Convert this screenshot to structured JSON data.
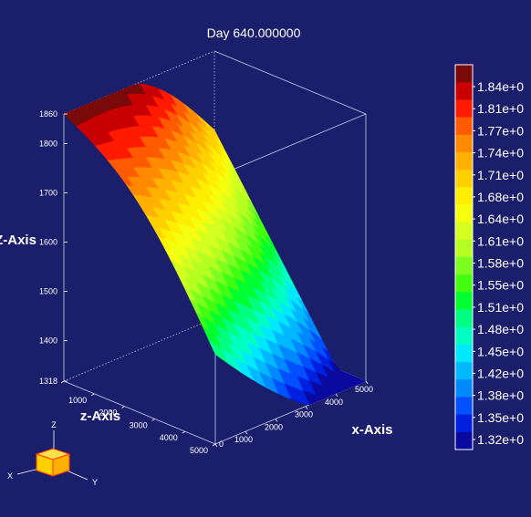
{
  "chart_data": {
    "type": "surface",
    "title": "Day 640.000000",
    "background_color": "#1a1e6b",
    "axes": {
      "vertical": {
        "label": "Z-Axis",
        "range": [
          1318,
          1860
        ],
        "ticks": [
          {
            "value": 1318,
            "label": "1318"
          },
          {
            "value": 1400,
            "label": "1400"
          },
          {
            "value": 1500,
            "label": "1500"
          },
          {
            "value": 1600,
            "label": "1600"
          },
          {
            "value": 1700,
            "label": "1700"
          },
          {
            "value": 1800,
            "label": "1800"
          },
          {
            "value": 1860,
            "label": "1860"
          }
        ]
      },
      "depth": {
        "label": "z-Axis",
        "range": [
          0,
          5000
        ],
        "ticks": [
          {
            "value": 0,
            "label": "0"
          },
          {
            "value": 1000,
            "label": "1000"
          },
          {
            "value": 2000,
            "label": "2000"
          },
          {
            "value": 3000,
            "label": "3000"
          },
          {
            "value": 4000,
            "label": "4000"
          },
          {
            "value": 5000,
            "label": "5000"
          }
        ]
      },
      "horizontal": {
        "label": "x-Axis",
        "range": [
          0,
          5000
        ],
        "ticks": [
          {
            "value": 0,
            "label": "0"
          },
          {
            "value": 1000,
            "label": "1000"
          },
          {
            "value": 2000,
            "label": "2000"
          },
          {
            "value": 3000,
            "label": "3000"
          },
          {
            "value": 4000,
            "label": "4000"
          },
          {
            "value": 5000,
            "label": "5000"
          }
        ]
      }
    },
    "surface": {
      "corner_values": [
        {
          "x": 0,
          "z": 0,
          "value": 1860
        },
        {
          "x": 0,
          "z": 5000,
          "value": 1500
        },
        {
          "x": 5000,
          "z": 0,
          "value": 1700
        },
        {
          "x": 5000,
          "z": 5000,
          "value": 1318
        }
      ],
      "color_by": "value"
    },
    "colorbar": {
      "labels": [
        "1.84e+0",
        "1.81e+0",
        "1.77e+0",
        "1.74e+0",
        "1.71e+0",
        "1.68e+0",
        "1.64e+0",
        "1.61e+0",
        "1.58e+0",
        "1.55e+0",
        "1.51e+0",
        "1.48e+0",
        "1.45e+0",
        "1.42e+0",
        "1.38e+0",
        "1.35e+0",
        "1.32e+0"
      ],
      "colors": [
        "#7a0a0a",
        "#c80000",
        "#ff1a00",
        "#ff5a00",
        "#ff8a00",
        "#ffb000",
        "#ffd000",
        "#ffee00",
        "#f5ff10",
        "#d4ff20",
        "#b4ff20",
        "#7cff20",
        "#40ff10",
        "#00ff30",
        "#00ff80",
        "#00ffc0",
        "#00e8ff",
        "#00b8ff",
        "#0088ff",
        "#0050ff",
        "#0020e0",
        "#0a0aa0"
      ]
    },
    "orientation_gizmo": {
      "labels": [
        "Z",
        "X",
        "Y"
      ]
    }
  }
}
